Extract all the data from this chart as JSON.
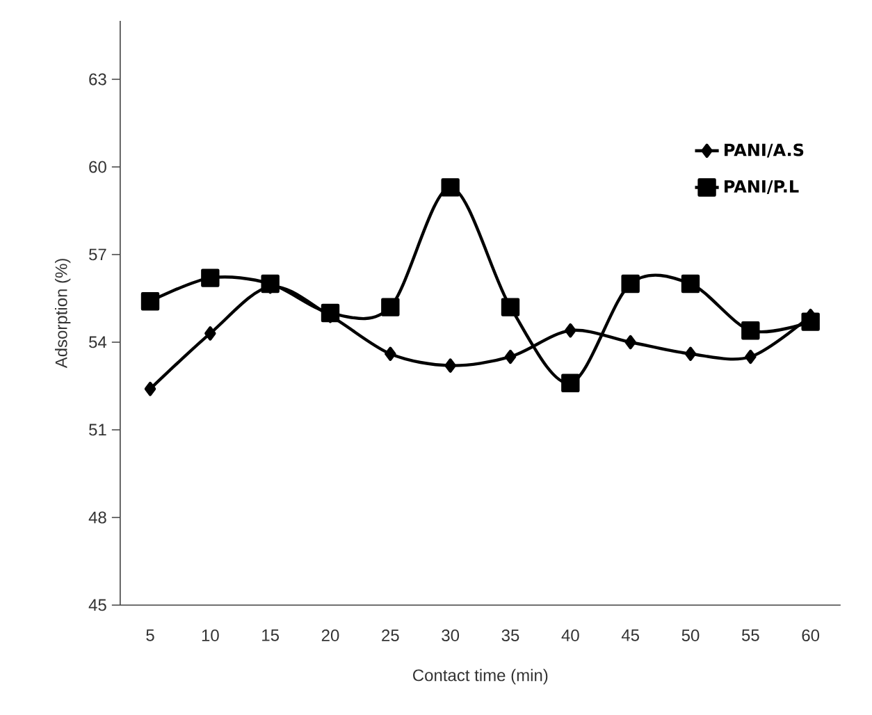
{
  "chart_data": {
    "type": "line",
    "xlabel": "Contact time (min)",
    "ylabel": "Adsorption (%)",
    "categories": [
      "5",
      "10",
      "15",
      "20",
      "25",
      "30",
      "35",
      "40",
      "45",
      "50",
      "55",
      "60"
    ],
    "series": [
      {
        "name": "PANI/A.S",
        "color": "#000000",
        "marker": "diamond",
        "values": [
          52.4,
          54.3,
          55.9,
          54.9,
          53.6,
          53.2,
          53.5,
          54.4,
          54.0,
          53.6,
          53.5,
          54.9
        ]
      },
      {
        "name": "PANI/P.L",
        "color": "#000000",
        "marker": "square",
        "values": [
          55.4,
          56.2,
          56.0,
          55.0,
          55.2,
          59.3,
          55.2,
          52.6,
          56.0,
          56.0,
          54.4,
          54.7
        ]
      }
    ],
    "ylim": [
      45,
      65
    ],
    "yticks": [
      45,
      48,
      51,
      54,
      57,
      60,
      63
    ],
    "grid": false,
    "legend": "top right",
    "line_style": "solid"
  }
}
